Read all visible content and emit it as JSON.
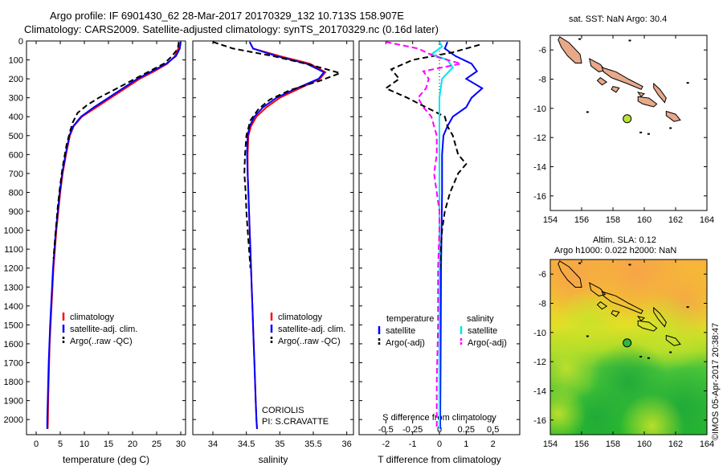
{
  "title_line1": "Argo profile: IF 6901430_62 28-Mar-2017 20170329_132 10.713S 158.907E",
  "title_line2": "Climatology: CARS2009. Satellite-adjusted climatology: synTS_20170329.nc (0.16d later)",
  "colors": {
    "climatology": "#ff0000",
    "satellite": "#0000ff",
    "argo": "#000000",
    "sal_satellite": "#00e5ee",
    "sal_argo": "#ff00ff"
  },
  "chart_data": [
    {
      "type": "line",
      "xlabel": "temperature (deg C)",
      "xlim": [
        -2,
        31
      ],
      "ylim": [
        2080,
        0
      ],
      "xticks": [
        0,
        5,
        10,
        15,
        20,
        25,
        30
      ],
      "yticks": [
        0,
        100,
        200,
        300,
        400,
        500,
        600,
        700,
        800,
        900,
        1000,
        1100,
        1200,
        1300,
        1400,
        1500,
        1600,
        1700,
        1800,
        1900,
        2000
      ],
      "legend": [
        "climatology",
        "satellite-adj. clim.",
        "Argo(..raw -QC)"
      ],
      "legend_position": "lower-center",
      "series": [
        {
          "name": "climatology",
          "style": "solid",
          "color": "#ff0000",
          "points": [
            [
              29.6,
              5
            ],
            [
              29.5,
              40
            ],
            [
              28.8,
              80
            ],
            [
              27.2,
              120
            ],
            [
              24.5,
              160
            ],
            [
              21.5,
              200
            ],
            [
              18.5,
              250
            ],
            [
              15.5,
              300
            ],
            [
              12.5,
              350
            ],
            [
              9.5,
              400
            ],
            [
              7.8,
              450
            ],
            [
              7.0,
              500
            ],
            [
              6.2,
              600
            ],
            [
              5.5,
              700
            ],
            [
              5.0,
              800
            ],
            [
              4.6,
              900
            ],
            [
              4.2,
              1000
            ],
            [
              3.9,
              1100
            ],
            [
              3.6,
              1200
            ],
            [
              3.4,
              1300
            ],
            [
              3.2,
              1400
            ],
            [
              3.0,
              1500
            ],
            [
              2.8,
              1600
            ],
            [
              2.7,
              1700
            ],
            [
              2.6,
              1800
            ],
            [
              2.5,
              1900
            ],
            [
              2.45,
              2000
            ],
            [
              2.4,
              2050
            ]
          ]
        },
        {
          "name": "satellite-adj. clim.",
          "style": "solid",
          "color": "#0000ff",
          "points": [
            [
              30.0,
              5
            ],
            [
              29.8,
              40
            ],
            [
              29.0,
              80
            ],
            [
              27.0,
              120
            ],
            [
              24.0,
              160
            ],
            [
              21.0,
              200
            ],
            [
              18.0,
              250
            ],
            [
              15.0,
              300
            ],
            [
              12.0,
              350
            ],
            [
              9.3,
              400
            ],
            [
              7.7,
              450
            ],
            [
              6.9,
              500
            ],
            [
              6.1,
              600
            ],
            [
              5.4,
              700
            ],
            [
              4.9,
              800
            ],
            [
              4.5,
              900
            ],
            [
              4.1,
              1000
            ],
            [
              3.8,
              1100
            ],
            [
              3.5,
              1200
            ],
            [
              3.3,
              1300
            ],
            [
              3.1,
              1400
            ],
            [
              2.9,
              1500
            ],
            [
              2.75,
              1600
            ],
            [
              2.6,
              1700
            ],
            [
              2.5,
              1800
            ],
            [
              2.4,
              1900
            ],
            [
              2.3,
              2000
            ],
            [
              2.3,
              2050
            ]
          ]
        },
        {
          "name": "Argo(..raw -QC)",
          "style": "dashed",
          "color": "#000000",
          "points": [
            [
              29.6,
              5
            ],
            [
              29.4,
              40
            ],
            [
              28.2,
              80
            ],
            [
              26.5,
              120
            ],
            [
              23.5,
              160
            ],
            [
              20.5,
              200
            ],
            [
              16.8,
              250
            ],
            [
              13.0,
              300
            ],
            [
              10.5,
              340
            ],
            [
              8.6,
              380
            ],
            [
              7.6,
              430
            ],
            [
              7.0,
              480
            ],
            [
              6.3,
              550
            ],
            [
              5.8,
              620
            ],
            [
              5.3,
              700
            ],
            [
              4.9,
              780
            ],
            [
              4.5,
              870
            ],
            [
              4.2,
              960
            ],
            [
              3.9,
              1050
            ],
            [
              3.6,
              1150
            ]
          ]
        }
      ]
    },
    {
      "type": "line",
      "xlabel": "salinity",
      "xlim": [
        33.7,
        36.1
      ],
      "ylim": [
        2080,
        0
      ],
      "xticks": [
        34,
        34.5,
        35,
        35.5,
        36
      ],
      "legend": [
        "climatology",
        "satellite-adj. clim.",
        "Argo(..raw -QC)"
      ],
      "legend_position": "lower-right",
      "annotation": [
        "CORIOLIS",
        "PI: S.CRAVATTE"
      ],
      "series": [
        {
          "name": "climatology",
          "style": "solid",
          "color": "#ff0000",
          "points": [
            [
              34.55,
              5
            ],
            [
              34.6,
              40
            ],
            [
              35.0,
              80
            ],
            [
              35.45,
              120
            ],
            [
              35.68,
              165
            ],
            [
              35.6,
              200
            ],
            [
              35.3,
              250
            ],
            [
              35.0,
              300
            ],
            [
              34.8,
              350
            ],
            [
              34.65,
              400
            ],
            [
              34.57,
              450
            ],
            [
              34.53,
              500
            ],
            [
              34.52,
              600
            ],
            [
              34.52,
              700
            ],
            [
              34.53,
              800
            ],
            [
              34.54,
              900
            ],
            [
              34.55,
              1000
            ],
            [
              34.56,
              1100
            ],
            [
              34.57,
              1200
            ],
            [
              34.58,
              1300
            ],
            [
              34.59,
              1400
            ],
            [
              34.6,
              1500
            ],
            [
              34.61,
              1600
            ],
            [
              34.62,
              1700
            ],
            [
              34.63,
              1800
            ],
            [
              34.64,
              1900
            ],
            [
              34.65,
              2000
            ],
            [
              34.66,
              2050
            ]
          ]
        },
        {
          "name": "satellite-adj. clim.",
          "style": "solid",
          "color": "#0000ff",
          "points": [
            [
              34.55,
              5
            ],
            [
              34.6,
              40
            ],
            [
              34.95,
              80
            ],
            [
              35.4,
              120
            ],
            [
              35.66,
              165
            ],
            [
              35.58,
              200
            ],
            [
              35.25,
              250
            ],
            [
              34.95,
              300
            ],
            [
              34.75,
              350
            ],
            [
              34.62,
              400
            ],
            [
              34.55,
              450
            ],
            [
              34.52,
              500
            ],
            [
              34.51,
              600
            ],
            [
              34.52,
              700
            ],
            [
              34.53,
              800
            ],
            [
              34.54,
              900
            ],
            [
              34.55,
              1000
            ],
            [
              34.56,
              1100
            ],
            [
              34.57,
              1200
            ],
            [
              34.58,
              1300
            ],
            [
              34.59,
              1400
            ],
            [
              34.6,
              1500
            ],
            [
              34.61,
              1600
            ],
            [
              34.62,
              1700
            ],
            [
              34.63,
              1800
            ],
            [
              34.64,
              1900
            ],
            [
              34.65,
              2000
            ],
            [
              34.66,
              2050
            ]
          ]
        },
        {
          "name": "Argo(..raw -QC)",
          "style": "dashed",
          "color": "#000000",
          "points": [
            [
              34.0,
              5
            ],
            [
              34.3,
              40
            ],
            [
              34.9,
              80
            ],
            [
              35.5,
              130
            ],
            [
              35.9,
              170
            ],
            [
              35.6,
              210
            ],
            [
              35.15,
              260
            ],
            [
              34.85,
              310
            ],
            [
              34.68,
              360
            ],
            [
              34.56,
              420
            ],
            [
              34.5,
              500
            ],
            [
              34.48,
              600
            ],
            [
              34.47,
              700
            ],
            [
              34.49,
              800
            ],
            [
              34.5,
              900
            ],
            [
              34.52,
              1000
            ],
            [
              34.54,
              1100
            ],
            [
              34.56,
              1200
            ]
          ]
        }
      ]
    },
    {
      "type": "line",
      "xlabel": "T difference from climatology",
      "xlabel_top": "S difference from climatology",
      "xlim": [
        -3,
        3
      ],
      "ylim": [
        2080,
        0
      ],
      "xticks": [
        -2,
        -1,
        0,
        1,
        2
      ],
      "xticks_top": [
        -0.5,
        -0.25,
        0,
        0.25,
        0.5
      ],
      "legend_titles": [
        "temperature",
        "salinity"
      ],
      "legend": [
        "satellite",
        "Argo(-adj)",
        "satellite",
        "Argo(-adj)"
      ],
      "legend_position": "lower-center",
      "series": [
        {
          "name": "temperature satellite",
          "style": "solid",
          "color": "#0000ff",
          "points": [
            [
              0.3,
              5
            ],
            [
              0.2,
              40
            ],
            [
              0.6,
              80
            ],
            [
              1.2,
              120
            ],
            [
              1.4,
              160
            ],
            [
              1.0,
              200
            ],
            [
              1.6,
              250
            ],
            [
              1.2,
              300
            ],
            [
              1.0,
              350
            ],
            [
              0.5,
              400
            ],
            [
              0.3,
              450
            ],
            [
              0.15,
              500
            ],
            [
              0.1,
              600
            ],
            [
              0.1,
              800
            ],
            [
              0.08,
              1000
            ],
            [
              0.06,
              1200
            ],
            [
              0.05,
              1500
            ],
            [
              0.04,
              1800
            ],
            [
              0.03,
              2000
            ],
            [
              0.03,
              2050
            ]
          ]
        },
        {
          "name": "temperature Argo(-adj)",
          "style": "dashed",
          "color": "#000000",
          "points": [
            [
              1.5,
              20
            ],
            [
              0.5,
              60
            ],
            [
              -1.0,
              100
            ],
            [
              -1.8,
              150
            ],
            [
              -1.5,
              200
            ],
            [
              -2.0,
              250
            ],
            [
              -1.2,
              300
            ],
            [
              -0.5,
              350
            ],
            [
              0.2,
              400
            ],
            [
              0.3,
              450
            ],
            [
              0.5,
              500
            ],
            [
              0.7,
              600
            ],
            [
              1.0,
              650
            ],
            [
              0.7,
              700
            ],
            [
              0.4,
              800
            ],
            [
              0.2,
              900
            ],
            [
              0.1,
              1000
            ],
            [
              0.05,
              1100
            ],
            [
              0.02,
              1200
            ]
          ]
        },
        {
          "name": "salinity satellite",
          "style": "solid",
          "color": "#00e5ee",
          "points": [
            [
              0.0,
              5
            ],
            [
              0.1,
              30
            ],
            [
              -0.3,
              70
            ],
            [
              0.3,
              100
            ],
            [
              0.5,
              140
            ],
            [
              0.1,
              200
            ],
            [
              0.0,
              300
            ],
            [
              0.0,
              500
            ],
            [
              0.0,
              800
            ],
            [
              0.0,
              1000
            ],
            [
              0.0,
              1500
            ],
            [
              0.0,
              2050
            ]
          ]
        },
        {
          "name": "salinity Argo(-adj)",
          "style": "dashed",
          "color": "#ff00ff",
          "points": [
            [
              -2.0,
              5
            ],
            [
              -0.8,
              40
            ],
            [
              -0.2,
              80
            ],
            [
              0.8,
              120
            ],
            [
              -0.6,
              160
            ],
            [
              -0.4,
              200
            ],
            [
              -0.5,
              250
            ],
            [
              -0.8,
              300
            ],
            [
              -0.6,
              350
            ],
            [
              -0.3,
              400
            ],
            [
              -0.2,
              450
            ],
            [
              -0.1,
              500
            ],
            [
              -0.1,
              600
            ],
            [
              -0.2,
              700
            ],
            [
              -0.1,
              800
            ],
            [
              0.0,
              900
            ],
            [
              0.0,
              1000
            ],
            [
              -0.05,
              1200
            ],
            [
              -0.05,
              1500
            ],
            [
              -0.1,
              1800
            ],
            [
              -0.1,
              2000
            ],
            [
              -0.1,
              2050
            ]
          ]
        }
      ]
    },
    {
      "type": "map",
      "title": "sat. SST: NaN Argo: 30.4",
      "xlim": [
        154,
        164
      ],
      "ylim": [
        -17,
        -5
      ],
      "xticks": [
        154,
        156,
        158,
        160,
        162,
        164
      ],
      "yticks": [
        -6,
        -8,
        -10,
        -12,
        -14,
        -16
      ],
      "profile_location": [
        158.907,
        -10.713
      ]
    },
    {
      "type": "map",
      "title_line1": "Altim. SLA: 0.12",
      "title_line2": "Argo h1000: 0.022 h2000: NaN",
      "xlim": [
        154,
        164
      ],
      "ylim": [
        -17,
        -5
      ],
      "xticks": [
        154,
        156,
        158,
        160,
        162,
        164
      ],
      "yticks": [
        -6,
        -8,
        -10,
        -12,
        -14,
        -16
      ],
      "profile_location": [
        158.907,
        -10.713
      ],
      "side_label": "©IMOS 05-Apr-2017 20:38:47"
    }
  ]
}
